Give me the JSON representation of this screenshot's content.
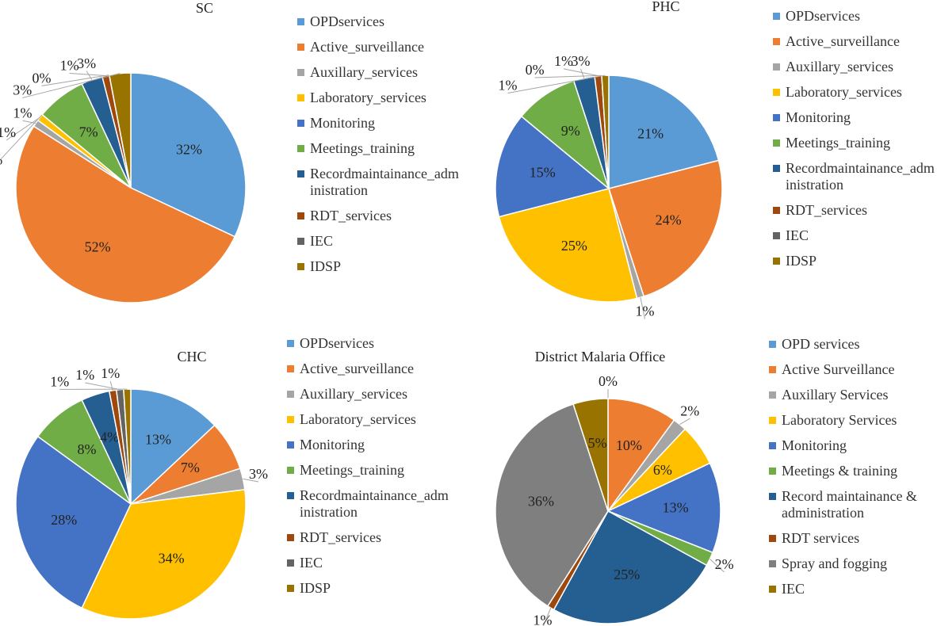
{
  "chart_data": [
    {
      "type": "pie",
      "title": "SC",
      "categories": [
        "OPDservices",
        "Active_surveillance",
        "Auxillary_services",
        "Laboratory_services",
        "Monitoring",
        "Meetings_training",
        "Recordmaintainance_administration",
        "RDT_services",
        "IEC",
        "IDSP"
      ],
      "values": [
        32,
        52,
        1,
        1,
        0,
        7,
        3,
        1,
        0,
        3
      ],
      "value_labels": [
        "32%",
        "52%",
        "1%",
        "1%",
        "0%",
        "7%",
        "3%",
        "1%",
        "0%",
        "3%"
      ],
      "colors": [
        "#5b9bd5",
        "#ed7d31",
        "#a5a5a5",
        "#ffc000",
        "#4472c4",
        "#70ad47",
        "#255e91",
        "#9e480e",
        "#636363",
        "#997300"
      ]
    },
    {
      "type": "pie",
      "title": "PHC",
      "categories": [
        "OPDservices",
        "Active_surveillance",
        "Auxillary_services",
        "Laboratory_services",
        "Monitoring",
        "Meetings_training",
        "Recordmaintainance_administration",
        "RDT_services",
        "IEC",
        "IDSP"
      ],
      "values": [
        21,
        24,
        1,
        25,
        15,
        9,
        3,
        1,
        0,
        1
      ],
      "value_labels": [
        "21%",
        "24%",
        "1%",
        "25%",
        "15%",
        "9%",
        "3%",
        "1%",
        "0%",
        "1%"
      ],
      "colors": [
        "#5b9bd5",
        "#ed7d31",
        "#a5a5a5",
        "#ffc000",
        "#4472c4",
        "#70ad47",
        "#255e91",
        "#9e480e",
        "#636363",
        "#997300"
      ]
    },
    {
      "type": "pie",
      "title": "CHC",
      "categories": [
        "OPDservices",
        "Active_surveillance",
        "Auxillary_services",
        "Laboratory_services",
        "Monitoring",
        "Meetings_training",
        "Recordmaintainance_administration",
        "RDT_services",
        "IEC",
        "IDSP"
      ],
      "values": [
        13,
        7,
        3,
        34,
        28,
        8,
        4,
        1,
        1,
        1
      ],
      "value_labels": [
        "13%",
        "7%",
        "3%",
        "34%",
        "28%",
        "8%",
        "4%",
        "1%",
        "1%",
        "1%"
      ],
      "colors": [
        "#5b9bd5",
        "#ed7d31",
        "#a5a5a5",
        "#ffc000",
        "#4472c4",
        "#70ad47",
        "#255e91",
        "#9e480e",
        "#636363",
        "#997300"
      ]
    },
    {
      "type": "pie",
      "title": "District Malaria Office",
      "categories": [
        "OPD services",
        "Active Surveillance",
        "Auxillary Services",
        "Laboratory Services",
        "Monitoring",
        "Meetings & training",
        "Record maintainance & administration",
        "RDT services",
        "Spray and fogging",
        "IEC"
      ],
      "values": [
        0,
        10,
        2,
        6,
        13,
        2,
        25,
        1,
        36,
        5
      ],
      "value_labels": [
        "0%",
        "10%",
        "2%",
        "6%",
        "13%",
        "2%",
        "25%",
        "1%",
        "36%",
        "5%"
      ],
      "colors": [
        "#5b9bd5",
        "#ed7d31",
        "#a5a5a5",
        "#ffc000",
        "#4472c4",
        "#70ad47",
        "#255e91",
        "#9e480e",
        "#7f7f7f",
        "#997300"
      ]
    }
  ]
}
